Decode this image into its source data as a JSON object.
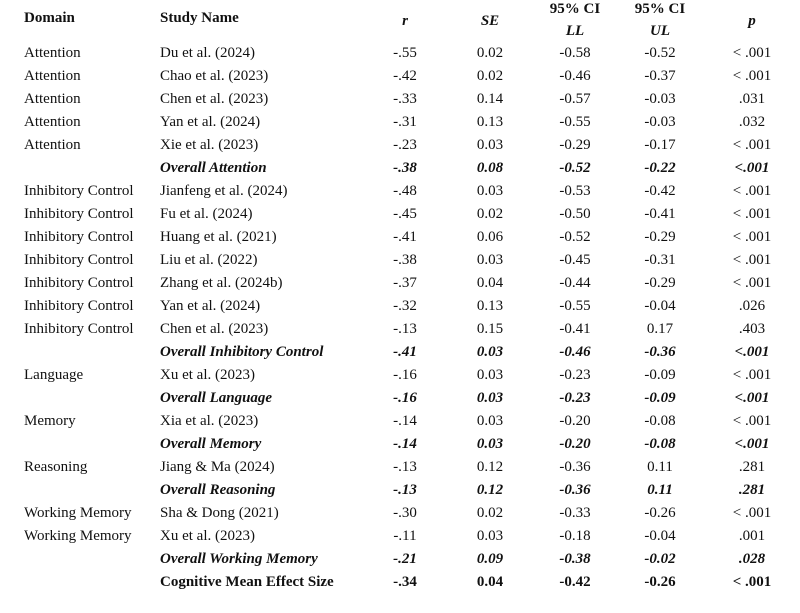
{
  "header": {
    "domain": "Domain",
    "study": "Study Name",
    "r": "r",
    "se": "SE",
    "ll_top": "95% CI",
    "ll": "LL",
    "ul_top": "95% CI",
    "ul": "UL",
    "p": "p"
  },
  "rows": [
    {
      "type": "study",
      "domain": "Attention",
      "study": "Du et al. (2024)",
      "r": "-.55",
      "se": "0.02",
      "ll": "-0.58",
      "ul": "-0.52",
      "p": "< .001"
    },
    {
      "type": "study",
      "domain": "Attention",
      "study": "Chao et al. (2023)",
      "r": "-.42",
      "se": "0.02",
      "ll": "-0.46",
      "ul": "-0.37",
      "p": "< .001"
    },
    {
      "type": "study",
      "domain": "Attention",
      "study": "Chen et al. (2023)",
      "r": "-.33",
      "se": "0.14",
      "ll": "-0.57",
      "ul": "-0.03",
      "p": ".031"
    },
    {
      "type": "study",
      "domain": "Attention",
      "study": "Yan et al. (2024)",
      "r": "-.31",
      "se": "0.13",
      "ll": "-0.55",
      "ul": "-0.03",
      "p": ".032"
    },
    {
      "type": "study",
      "domain": "Attention",
      "study": "Xie et al. (2023)",
      "r": "-.23",
      "se": "0.03",
      "ll": "-0.29",
      "ul": "-0.17",
      "p": "< .001"
    },
    {
      "type": "overall",
      "domain": "",
      "study": "Overall Attention",
      "r": "-.38",
      "se": "0.08",
      "ll": "-0.52",
      "ul": "-0.22",
      "p": "<.001"
    },
    {
      "type": "study",
      "domain": "Inhibitory Control",
      "study": "Jianfeng et al. (2024)",
      "r": "-.48",
      "se": "0.03",
      "ll": "-0.53",
      "ul": "-0.42",
      "p": "< .001"
    },
    {
      "type": "study",
      "domain": "Inhibitory Control",
      "study": "Fu et al. (2024)",
      "r": "-.45",
      "se": "0.02",
      "ll": "-0.50",
      "ul": "-0.41",
      "p": "< .001"
    },
    {
      "type": "study",
      "domain": "Inhibitory Control",
      "study": "Huang et al. (2021)",
      "r": "-.41",
      "se": "0.06",
      "ll": "-0.52",
      "ul": "-0.29",
      "p": "< .001"
    },
    {
      "type": "study",
      "domain": "Inhibitory Control",
      "study": "Liu et al. (2022)",
      "r": "-.38",
      "se": "0.03",
      "ll": "-0.45",
      "ul": "-0.31",
      "p": "< .001"
    },
    {
      "type": "study",
      "domain": "Inhibitory Control",
      "study": "Zhang et al. (2024b)",
      "r": "-.37",
      "se": "0.04",
      "ll": "-0.44",
      "ul": "-0.29",
      "p": "< .001"
    },
    {
      "type": "study",
      "domain": "Inhibitory Control",
      "study": "Yan et al. (2024)",
      "r": "-.32",
      "se": "0.13",
      "ll": "-0.55",
      "ul": "-0.04",
      "p": ".026"
    },
    {
      "type": "study",
      "domain": "Inhibitory Control",
      "study": "Chen et al. (2023)",
      "r": "-.13",
      "se": "0.15",
      "ll": "-0.41",
      "ul": "0.17",
      "p": ".403"
    },
    {
      "type": "overall",
      "domain": "",
      "study": "Overall Inhibitory Control",
      "r": "-.41",
      "se": "0.03",
      "ll": "-0.46",
      "ul": "-0.36",
      "p": "<.001"
    },
    {
      "type": "study",
      "domain": "Language",
      "study": "Xu et al. (2023)",
      "r": "-.16",
      "se": "0.03",
      "ll": "-0.23",
      "ul": "-0.09",
      "p": "< .001"
    },
    {
      "type": "overall",
      "domain": "",
      "study": "Overall Language",
      "r": "-.16",
      "se": "0.03",
      "ll": "-0.23",
      "ul": "-0.09",
      "p": "<.001"
    },
    {
      "type": "study",
      "domain": "Memory",
      "study": "Xia et al. (2023)",
      "r": "-.14",
      "se": "0.03",
      "ll": "-0.20",
      "ul": "-0.08",
      "p": "< .001"
    },
    {
      "type": "overall",
      "domain": "",
      "study": "Overall Memory",
      "r": "-.14",
      "se": "0.03",
      "ll": "-0.20",
      "ul": "-0.08",
      "p": "<.001"
    },
    {
      "type": "study",
      "domain": "Reasoning",
      "study": "Jiang & Ma (2024)",
      "r": "-.13",
      "se": "0.12",
      "ll": "-0.36",
      "ul": "0.11",
      "p": ".281"
    },
    {
      "type": "overall",
      "domain": "",
      "study": "Overall Reasoning",
      "r": "-.13",
      "se": "0.12",
      "ll": "-0.36",
      "ul": "0.11",
      "p": ".281"
    },
    {
      "type": "study",
      "domain": "Working Memory",
      "study": "Sha & Dong (2021)",
      "r": "-.30",
      "se": "0.02",
      "ll": "-0.33",
      "ul": "-0.26",
      "p": "< .001"
    },
    {
      "type": "study",
      "domain": "Working Memory",
      "study": "Xu et al. (2023)",
      "r": "-.11",
      "se": "0.03",
      "ll": "-0.18",
      "ul": "-0.04",
      "p": ".001"
    },
    {
      "type": "overall",
      "domain": "",
      "study": "Overall Working Memory",
      "r": "-.21",
      "se": "0.09",
      "ll": "-0.38",
      "ul": "-0.02",
      "p": ".028"
    },
    {
      "type": "total",
      "domain": "",
      "study": "Cognitive Mean Effect Size",
      "r": "-.34",
      "se": "0.04",
      "ll": "-0.42",
      "ul": "-0.26",
      "p": "< .001"
    }
  ]
}
